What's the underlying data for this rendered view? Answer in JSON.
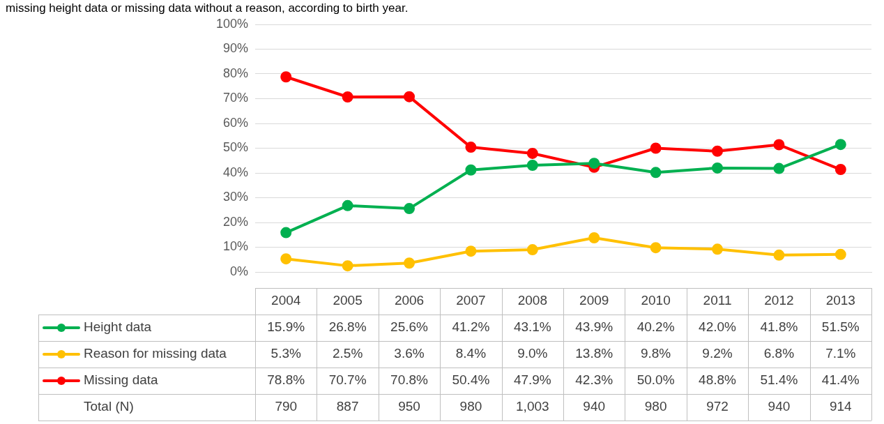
{
  "chart_data": {
    "type": "line",
    "title": "missing height data or missing data without a reason, according to birth year.",
    "categories": [
      "2004",
      "2005",
      "2006",
      "2007",
      "2008",
      "2009",
      "2010",
      "2011",
      "2012",
      "2013"
    ],
    "series": [
      {
        "name": "Height data",
        "color": "#00b050",
        "values": [
          15.9,
          26.8,
          25.6,
          41.2,
          43.1,
          43.9,
          40.2,
          42.0,
          41.8,
          51.5
        ],
        "value_labels": [
          "15.9%",
          "26.8%",
          "25.6%",
          "41.2%",
          "43.1%",
          "43.9%",
          "40.2%",
          "42.0%",
          "41.8%",
          "51.5%"
        ]
      },
      {
        "name": "Reason for missing data",
        "color": "#ffc000",
        "values": [
          5.3,
          2.5,
          3.6,
          8.4,
          9.0,
          13.8,
          9.8,
          9.2,
          6.8,
          7.1
        ],
        "value_labels": [
          "5.3%",
          "2.5%",
          "3.6%",
          "8.4%",
          "9.0%",
          "13.8%",
          "9.8%",
          "9.2%",
          "6.8%",
          "7.1%"
        ]
      },
      {
        "name": "Missing data",
        "color": "#ff0000",
        "values": [
          78.8,
          70.7,
          70.8,
          50.4,
          47.9,
          42.3,
          50.0,
          48.8,
          51.4,
          41.4
        ],
        "value_labels": [
          "78.8%",
          "70.7%",
          "70.8%",
          "50.4%",
          "47.9%",
          "42.3%",
          "50.0%",
          "48.8%",
          "51.4%",
          "41.4%"
        ]
      }
    ],
    "annotations": [
      "Total (N)",
      "790",
      "887",
      "950",
      "980",
      "1,003",
      "940",
      "980",
      "972",
      "940",
      "914"
    ],
    "ylim": [
      0,
      100
    ],
    "yticks": [
      {
        "value": 0,
        "label": "0%"
      },
      {
        "value": 10,
        "label": "10%"
      },
      {
        "value": 20,
        "label": "20%"
      },
      {
        "value": 30,
        "label": "30%"
      },
      {
        "value": 40,
        "label": "40%"
      },
      {
        "value": 50,
        "label": "50%"
      },
      {
        "value": 60,
        "label": "60%"
      },
      {
        "value": 70,
        "label": "70%"
      },
      {
        "value": 80,
        "label": "80%"
      },
      {
        "value": 90,
        "label": "90%"
      },
      {
        "value": 100,
        "label": "100%"
      }
    ],
    "grid": "y",
    "legend": "bottom",
    "marker": "circle",
    "line_style": "solid"
  }
}
